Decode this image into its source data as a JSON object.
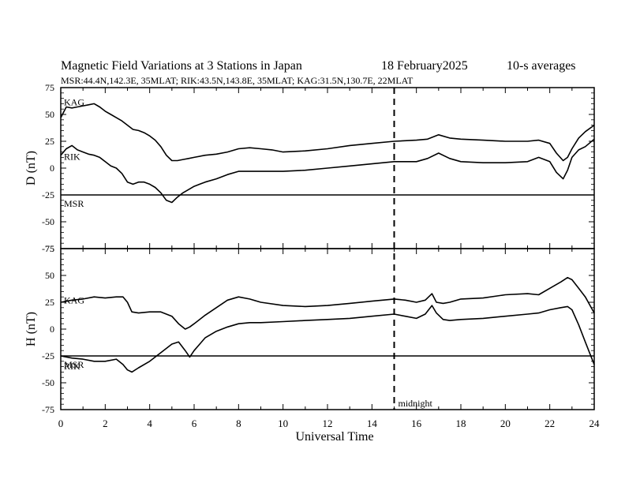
{
  "header": {
    "title": "Magnetic Field Variations at 3 Stations in Japan",
    "date": "18 February2025",
    "avg": "10-s averages",
    "stations": "MSR:44.4N,142.3E, 35MLAT;  RIK:43.5N,143.8E, 35MLAT;  KAG:31.5N,130.7E, 22MLAT"
  },
  "chart_data": [
    {
      "type": "line",
      "panel": "D",
      "ylabel": "D (nT)",
      "ylim": [
        -75,
        75
      ],
      "yticks": [
        "75",
        "50",
        "25",
        "0",
        "-25",
        "-50",
        "-75"
      ],
      "xlim": [
        0,
        24
      ],
      "series": [
        {
          "name": "KAG",
          "x": [
            0,
            0.25,
            0.5,
            0.75,
            1,
            1.25,
            1.5,
            1.75,
            2,
            2.25,
            2.5,
            2.75,
            3,
            3.25,
            3.5,
            3.75,
            4,
            4.25,
            4.5,
            4.75,
            5,
            5.25,
            5.5,
            5.75,
            6,
            6.5,
            7,
            7.5,
            8,
            8.5,
            9,
            9.5,
            10,
            11,
            12,
            13,
            14,
            15,
            16,
            16.5,
            17,
            17.5,
            18,
            19,
            20,
            21,
            21.5,
            22,
            22.3,
            22.6,
            22.8,
            23,
            23.3,
            23.6,
            24
          ],
          "y": [
            47,
            57,
            56,
            57,
            58,
            59,
            60,
            57,
            53,
            50,
            47,
            44,
            40,
            36,
            35,
            33,
            30,
            26,
            20,
            12,
            7,
            7,
            8,
            9,
            10,
            12,
            13,
            15,
            18,
            19,
            18,
            17,
            15,
            16,
            18,
            21,
            23,
            25,
            26,
            27,
            31,
            28,
            27,
            26,
            25,
            25,
            26,
            23,
            14,
            7,
            10,
            18,
            28,
            34,
            40
          ]
        },
        {
          "name": "RIK",
          "x": [
            0,
            0.25,
            0.5,
            0.75,
            1,
            1.25,
            1.5,
            1.75,
            2,
            2.25,
            2.5,
            2.75,
            3,
            3.25,
            3.5,
            3.75,
            4,
            4.25,
            4.5,
            4.75,
            5,
            5.25,
            5.5,
            5.75,
            6,
            6.5,
            7,
            7.5,
            8,
            8.5,
            9,
            9.5,
            10,
            11,
            12,
            13,
            14,
            15,
            16,
            16.5,
            17,
            17.5,
            18,
            19,
            20,
            21,
            21.5,
            22,
            22.3,
            22.6,
            22.8,
            23,
            23.3,
            23.6,
            24
          ],
          "y": [
            12,
            18,
            21,
            17,
            15,
            13,
            12,
            10,
            6,
            2,
            0,
            -5,
            -13,
            -15,
            -13,
            -13,
            -15,
            -18,
            -23,
            -30,
            -32,
            -27,
            -23,
            -20,
            -17,
            -13,
            -10,
            -6,
            -3,
            -3,
            -3,
            -3,
            -3,
            -2,
            0,
            2,
            4,
            6,
            6,
            9,
            14,
            9,
            6,
            5,
            5,
            6,
            10,
            6,
            -4,
            -10,
            -2,
            10,
            17,
            20,
            27
          ]
        },
        {
          "name": "MSR",
          "x": [
            0,
            24
          ],
          "y": [
            -25,
            -25
          ]
        }
      ]
    },
    {
      "type": "line",
      "panel": "H",
      "ylabel": "H (nT)",
      "ylim": [
        -75,
        75
      ],
      "yticks": [
        "75",
        "50",
        "25",
        "0",
        "-25",
        "-50",
        "-75"
      ],
      "xlim": [
        0,
        24
      ],
      "series": [
        {
          "name": "KAG",
          "x": [
            0,
            0.5,
            1,
            1.5,
            2,
            2.5,
            2.8,
            3,
            3.2,
            3.5,
            4,
            4.5,
            5,
            5.3,
            5.6,
            5.8,
            6,
            6.5,
            7,
            7.5,
            8,
            8.5,
            9,
            10,
            11,
            12,
            13,
            14,
            15,
            15.5,
            16,
            16.4,
            16.7,
            16.9,
            17.2,
            17.5,
            18,
            19,
            20,
            21,
            21.5,
            22,
            22.5,
            22.8,
            23,
            23.3,
            23.6,
            24
          ],
          "y": [
            25,
            27,
            28,
            30,
            29,
            30,
            30,
            25,
            16,
            15,
            16,
            16,
            12,
            5,
            0,
            2,
            5,
            13,
            20,
            27,
            30,
            28,
            25,
            22,
            21,
            22,
            24,
            26,
            28,
            27,
            25,
            27,
            33,
            25,
            24,
            25,
            28,
            29,
            32,
            33,
            32,
            38,
            44,
            48,
            46,
            38,
            30,
            15
          ]
        },
        {
          "name": "RIK",
          "x": [
            0,
            0.5,
            1,
            1.5,
            2,
            2.5,
            2.8,
            3,
            3.2,
            3.5,
            4,
            4.5,
            5,
            5.3,
            5.6,
            5.8,
            6,
            6.5,
            7,
            7.5,
            8,
            8.5,
            9,
            10,
            11,
            12,
            13,
            14,
            15,
            15.5,
            16,
            16.4,
            16.7,
            16.9,
            17.2,
            17.5,
            18,
            19,
            20,
            21,
            21.5,
            22,
            22.5,
            22.8,
            23,
            23.3,
            23.6,
            24
          ],
          "y": [
            -25,
            -27,
            -28,
            -30,
            -30,
            -28,
            -33,
            -38,
            -40,
            -36,
            -30,
            -22,
            -14,
            -12,
            -20,
            -26,
            -20,
            -8,
            -2,
            2,
            5,
            6,
            6,
            7,
            8,
            9,
            10,
            12,
            14,
            12,
            10,
            14,
            22,
            15,
            9,
            8,
            9,
            10,
            12,
            14,
            15,
            18,
            20,
            21,
            18,
            4,
            -12,
            -33
          ]
        },
        {
          "name": "MSR",
          "x": [
            0,
            24
          ],
          "y": [
            -25,
            -25
          ]
        }
      ]
    }
  ],
  "xaxis": {
    "label": "Universal Time",
    "ticks": [
      "0",
      "2",
      "4",
      "6",
      "8",
      "10",
      "12",
      "14",
      "16",
      "18",
      "20",
      "22",
      "24"
    ]
  },
  "midnight": {
    "x": 15,
    "label": "midnight"
  }
}
